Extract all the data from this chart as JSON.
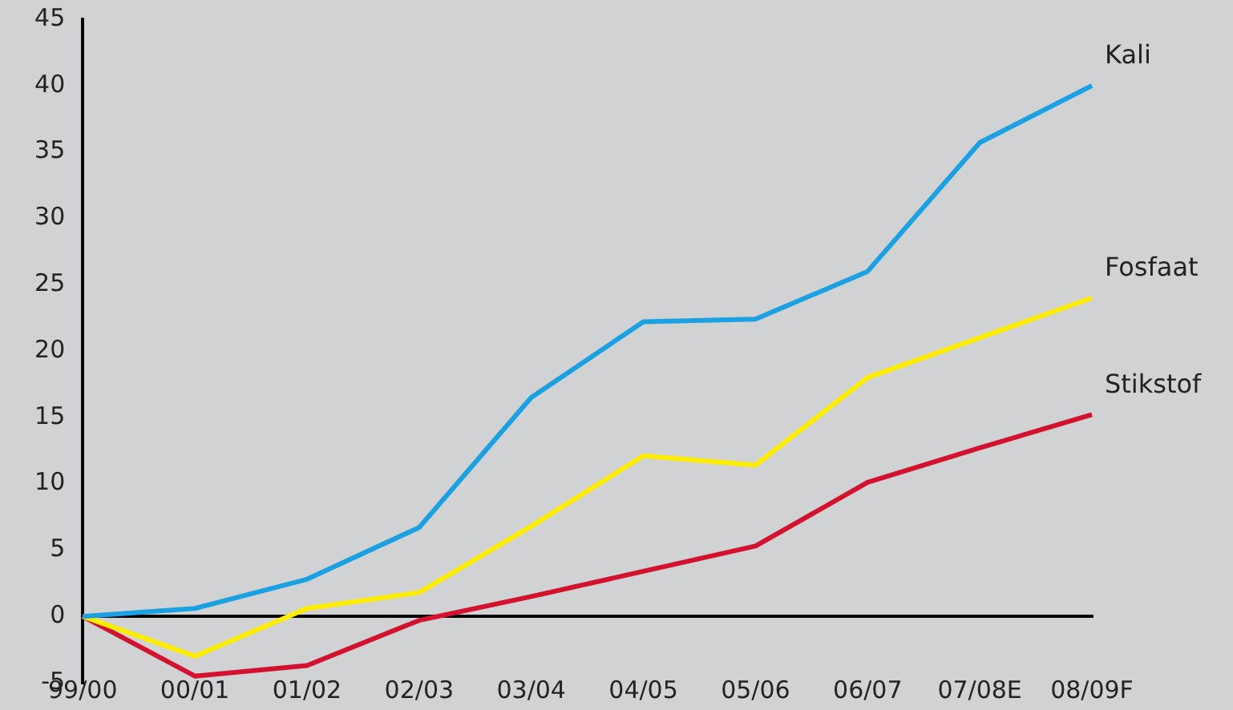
{
  "chart_data": {
    "type": "line",
    "categories": [
      "99/00",
      "00/01",
      "01/02",
      "02/03",
      "03/04",
      "04/05",
      "05/06",
      "06/07",
      "07/08E",
      "08/09F"
    ],
    "series": [
      {
        "name": "Kali",
        "color": "#1ba1e2",
        "values": [
          0,
          0.6,
          2.8,
          6.7,
          16.5,
          22.2,
          22.4,
          26,
          35.7,
          40
        ]
      },
      {
        "name": "Fosfaat",
        "color": "#ffed00",
        "values": [
          0,
          -3,
          0.6,
          1.8,
          6.8,
          12.1,
          11.4,
          18,
          21,
          24
        ]
      },
      {
        "name": "Stikstof",
        "color": "#d2122e",
        "values": [
          0,
          -4.5,
          -3.7,
          -0.3,
          1.5,
          3.4,
          5.3,
          10.1,
          12.7,
          15.2
        ]
      }
    ],
    "ylim": [
      -5,
      45
    ],
    "yticks": [
      -5,
      0,
      5,
      10,
      15,
      20,
      25,
      30,
      35,
      40,
      45
    ],
    "grid": false,
    "legend": false,
    "marker": "none",
    "line_style": "solid"
  }
}
